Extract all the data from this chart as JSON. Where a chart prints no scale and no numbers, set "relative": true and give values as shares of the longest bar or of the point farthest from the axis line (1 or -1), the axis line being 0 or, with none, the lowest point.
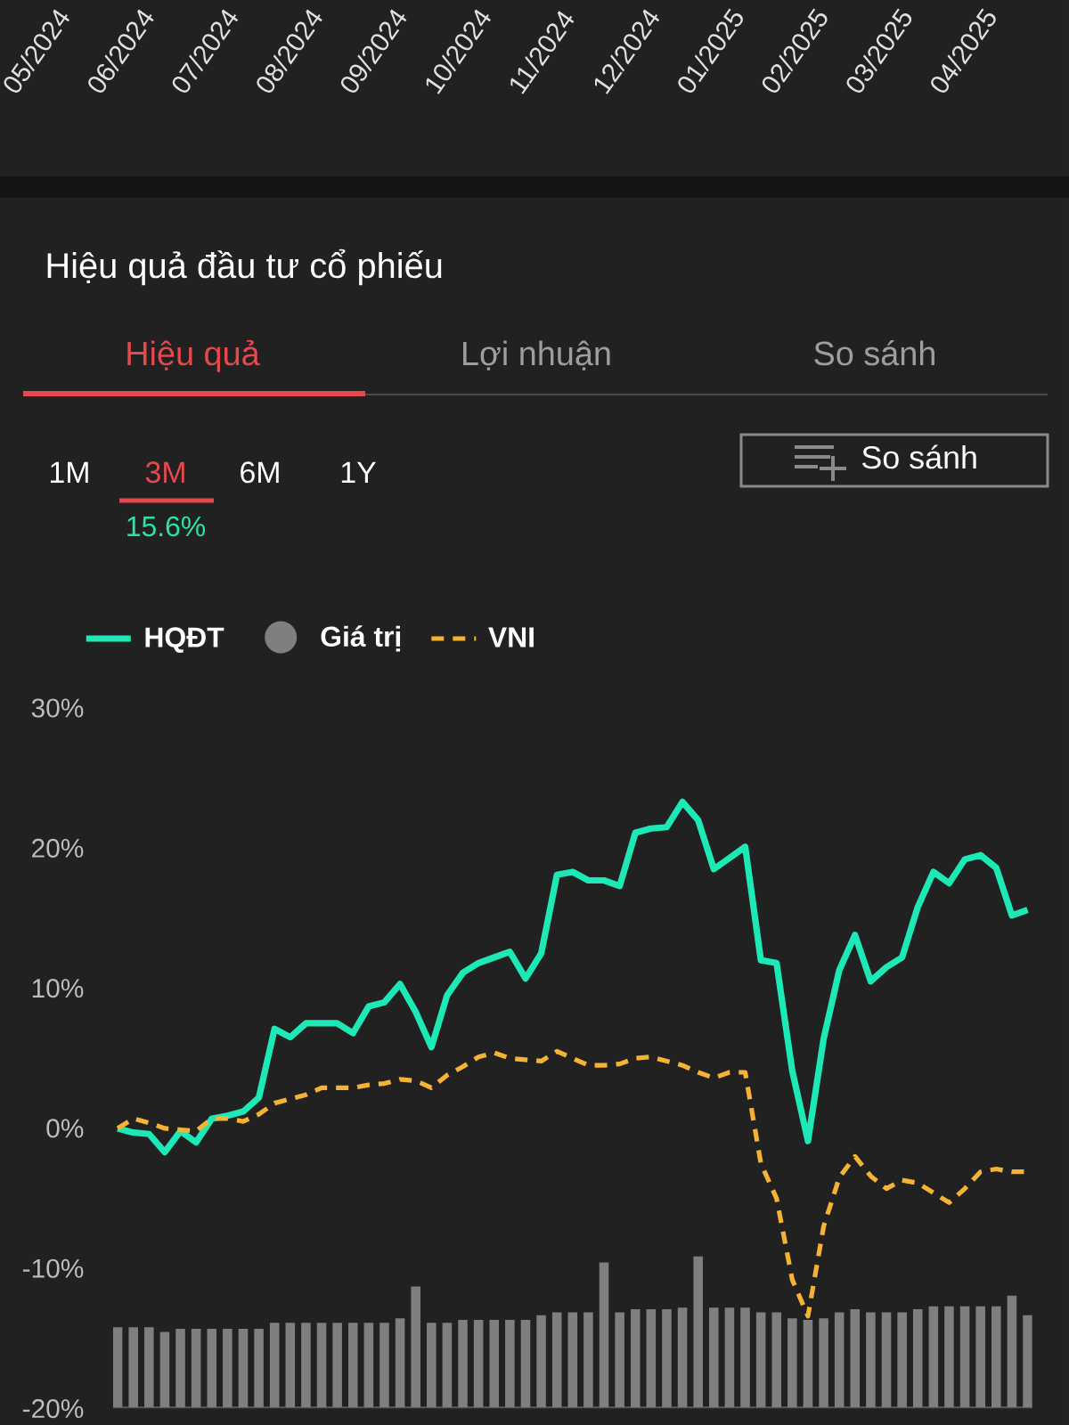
{
  "chart_data": [
    {
      "type": "line",
      "title": "Hiệu quả đầu tư cổ phiếu",
      "annotations": [
        "05/2024",
        "06/2024",
        "07/2024",
        "08/2024",
        "09/2024",
        "10/2024",
        "11/2024",
        "12/2024",
        "01/2025",
        "02/2025",
        "03/2025",
        "04/2025",
        "Hiệu quả",
        "Lợi nhuận",
        "So sánh",
        "1M",
        "3M",
        "6M",
        "1Y",
        "15.6%",
        "So sánh"
      ],
      "categories": [
        null,
        null,
        null,
        null,
        null,
        null,
        null,
        null,
        null,
        null,
        null,
        null,
        null,
        null,
        null,
        null,
        null,
        null,
        null,
        null,
        null,
        null,
        null,
        null,
        null,
        null,
        null,
        null,
        null,
        null,
        null,
        null,
        null,
        null,
        null,
        null,
        null,
        null,
        null,
        null,
        null,
        null,
        null,
        null,
        null,
        null,
        null,
        null,
        null,
        null,
        null,
        null,
        null,
        null,
        null,
        null,
        null,
        null,
        null
      ],
      "series": [
        {
          "name": "HQĐT",
          "color": "#1de9b6",
          "line_style": "solid",
          "values": [
            0,
            -0.3,
            -0.4,
            -1.7,
            -0.2,
            -1.0,
            0.7,
            0.9,
            1.2,
            2.2,
            7.1,
            6.5,
            7.5,
            7.5,
            7.5,
            6.8,
            8.7,
            9.0,
            10.3,
            8.3,
            5.8,
            9.5,
            11.1,
            11.8,
            12.2,
            12.6,
            10.7,
            12.5,
            18.1,
            18.3,
            17.7,
            17.7,
            17.3,
            21.1,
            21.4,
            21.5,
            23.3,
            22.0,
            18.5,
            19.3,
            20.1,
            12.0,
            11.8,
            4.1,
            -0.9,
            6.4,
            11.3,
            13.8,
            10.5,
            11.5,
            12.2,
            15.8,
            18.3,
            17.5,
            19.2,
            19.5,
            18.6,
            15.2,
            15.6
          ]
        },
        {
          "name": "VNI",
          "color": "#f5b335",
          "line_style": "dashed",
          "values": [
            0,
            0.7,
            0.4,
            0.0,
            -0.1,
            -0.2,
            0.7,
            0.7,
            0.5,
            1.0,
            1.8,
            2.1,
            2.4,
            2.9,
            2.9,
            2.9,
            3.1,
            3.2,
            3.5,
            3.4,
            2.9,
            3.8,
            4.4,
            5.1,
            5.4,
            5.0,
            4.9,
            4.8,
            5.5,
            5.0,
            4.5,
            4.5,
            4.6,
            5.0,
            5.1,
            4.8,
            4.5,
            4.0,
            3.6,
            4.0,
            4.0,
            -2.5,
            -5.0,
            -10.8,
            -13.4,
            -7.0,
            -3.5,
            -2.0,
            -3.4,
            -4.3,
            -3.7,
            -3.9,
            -4.6,
            -5.3,
            -4.3,
            -3.1,
            -2.9,
            -3.1,
            -3.1
          ]
        }
      ],
      "ylim": [
        -20,
        30
      ],
      "yticks": [
        {
          "value": -20,
          "label": "-20%"
        },
        {
          "value": -10,
          "label": "-10%"
        },
        {
          "value": 0,
          "label": "0%"
        },
        {
          "value": 10,
          "label": "10%"
        },
        {
          "value": 20,
          "label": "20%"
        },
        {
          "value": 30,
          "label": "30%"
        }
      ],
      "legend": "top left"
    },
    {
      "type": "bar",
      "relative": true,
      "categories": [
        null,
        null,
        null,
        null,
        null,
        null,
        null,
        null,
        null,
        null,
        null,
        null,
        null,
        null,
        null,
        null,
        null,
        null,
        null,
        null,
        null,
        null,
        null,
        null,
        null,
        null,
        null,
        null,
        null,
        null,
        null,
        null,
        null,
        null,
        null,
        null,
        null,
        null,
        null,
        null,
        null,
        null,
        null,
        null,
        null,
        null,
        null,
        null,
        null,
        null,
        null,
        null,
        null,
        null,
        null,
        null,
        null,
        null,
        null
      ],
      "series": [
        {
          "name": "Giá trị",
          "color": "#7f7f7f",
          "values": [
            0.53,
            0.53,
            0.53,
            0.5,
            0.52,
            0.52,
            0.52,
            0.52,
            0.52,
            0.52,
            0.56,
            0.56,
            0.56,
            0.56,
            0.56,
            0.56,
            0.56,
            0.56,
            0.59,
            0.8,
            0.56,
            0.56,
            0.58,
            0.58,
            0.58,
            0.58,
            0.58,
            0.61,
            0.63,
            0.63,
            0.63,
            0.96,
            0.63,
            0.65,
            0.65,
            0.65,
            0.66,
            1,
            0.66,
            0.66,
            0.66,
            0.63,
            0.63,
            0.59,
            0.58,
            0.59,
            0.63,
            0.65,
            0.63,
            0.63,
            0.63,
            0.65,
            0.67,
            0.67,
            0.67,
            0.67,
            0.67,
            0.74,
            0.61
          ]
        }
      ],
      "legend": "top left"
    }
  ]
}
